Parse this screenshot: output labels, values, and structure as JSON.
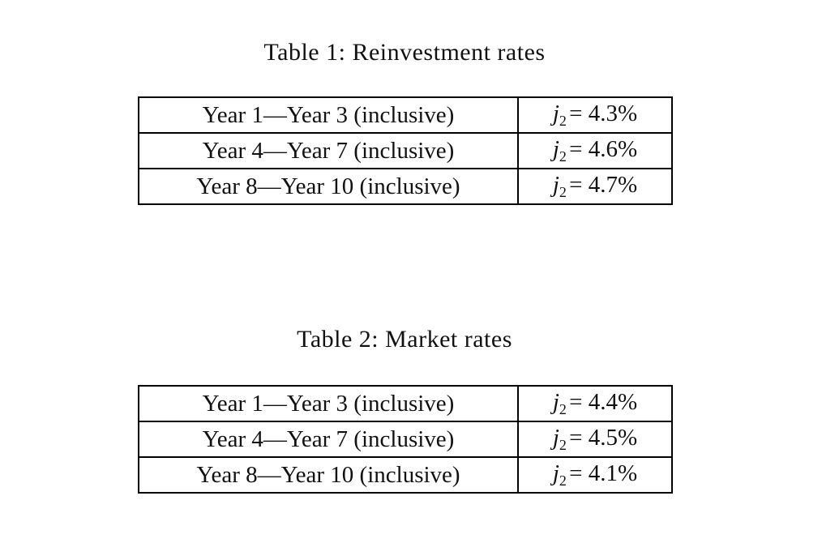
{
  "accent_colors": {
    "text": "#111111",
    "border": "#000000",
    "background": "#ffffff"
  },
  "tables": [
    {
      "title": "Table 1: Reinvestment rates",
      "rows": [
        {
          "period": "Year 1—Year 3 (inclusive)",
          "rate": {
            "var": "j",
            "sub": "2",
            "value": "= 4.3%"
          }
        },
        {
          "period": "Year 4—Year 7 (inclusive)",
          "rate": {
            "var": "j",
            "sub": "2",
            "value": "= 4.6%"
          }
        },
        {
          "period": "Year 8—Year 10 (inclusive)",
          "rate": {
            "var": "j",
            "sub": "2",
            "value": "= 4.7%"
          }
        }
      ]
    },
    {
      "title": "Table 2: Market rates",
      "rows": [
        {
          "period": "Year 1—Year 3 (inclusive)",
          "rate": {
            "var": "j",
            "sub": "2",
            "value": "= 4.4%"
          }
        },
        {
          "period": "Year 4—Year 7 (inclusive)",
          "rate": {
            "var": "j",
            "sub": "2",
            "value": "= 4.5%"
          }
        },
        {
          "period": "Year 8—Year 10 (inclusive)",
          "rate": {
            "var": "j",
            "sub": "2",
            "value": "= 4.1%"
          }
        }
      ]
    }
  ]
}
